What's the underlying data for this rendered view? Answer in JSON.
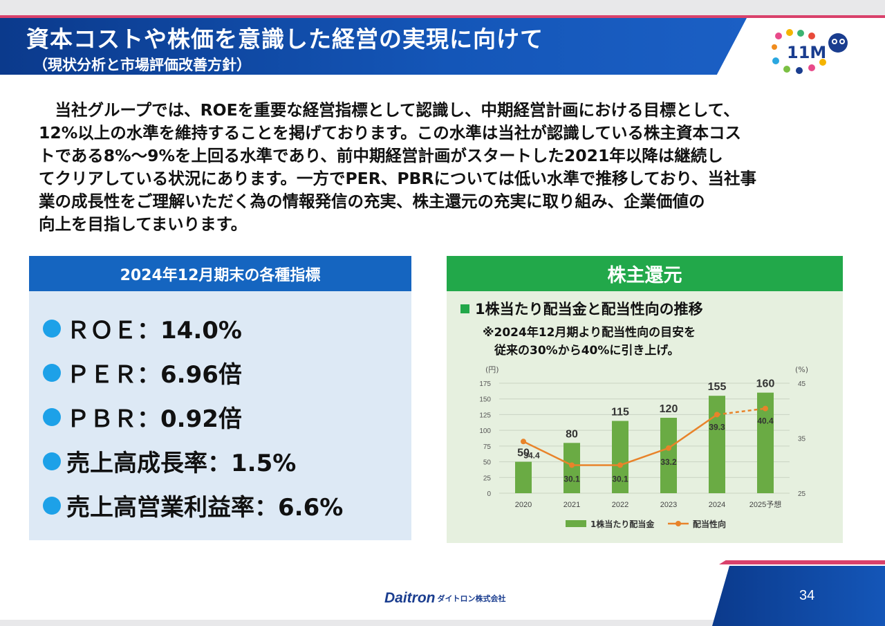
{
  "header": {
    "title": "資本コストや株価を意識した経営の実現に向けて",
    "subtitle": "（現状分析と市場評価改善方針）",
    "logo_text": "11M"
  },
  "intro_lines": [
    "　当社グループでは、ROEを重要な経営指標として認識し、中期経営計画における目標として、",
    "12%以上の水準を維持することを掲げております。この水準は当社が認識している株主資本コス",
    "トである8%～9%を上回る水準であり、前中期経営計画がスタートした2021年以降は継続し",
    "てクリアしている状況にあります。一方でPER、PBRについては低い水準で推移しており、当社事",
    "業の成長性をご理解いただく為の情報発信の充実、株主還元の充実に取り組み、企業価値の",
    "向上を目指してまいります。"
  ],
  "indicators": {
    "heading": "2024年12月期末の各種指標",
    "items": [
      "ＲＯＥ：14.0%",
      "ＰＥＲ：6.96倍",
      "ＰＢＲ：0.92倍",
      "売上高成長率：1.5%",
      "売上高営業利益率：6.6%"
    ]
  },
  "returns": {
    "heading": "株主還元",
    "section_title": "1株当たり配当金と配当性向の推移",
    "note": "※2024年12月期より配当性向の目安を\n　従来の30%から40%に引き上げ。"
  },
  "chart_data": {
    "type": "bar",
    "categories": [
      "2020",
      "2021",
      "2022",
      "2023",
      "2024",
      "2025予想"
    ],
    "series": [
      {
        "name": "1株当たり配当金",
        "type": "bar",
        "axis": "left",
        "values": [
          50,
          80,
          115,
          120,
          155,
          160
        ]
      },
      {
        "name": "配当性向",
        "type": "line",
        "axis": "right",
        "values": [
          34.4,
          30.1,
          30.1,
          33.2,
          39.3,
          40.4
        ],
        "dashed_last_segment": true
      }
    ],
    "left_axis": {
      "unit": "(円)",
      "ylim": [
        0,
        175
      ],
      "ticks": [
        "0",
        "25",
        "50",
        "75",
        "100",
        "125",
        "150",
        "175"
      ]
    },
    "right_axis": {
      "unit": "(%)",
      "ylim": [
        25,
        45
      ],
      "ticks": [
        "25",
        "35",
        "45"
      ]
    },
    "grid": true,
    "legend_position": "bottom",
    "colors": {
      "bar": "#6aab44",
      "line": "#e8832a"
    }
  },
  "footer": {
    "company_en": "Daitron",
    "company_jp": "ダイトロン株式会社",
    "page_number": "34"
  },
  "colors": {
    "banner": "#1456b8",
    "accent_pink": "#d9416b",
    "indicator_header": "#1565c0",
    "returns_header": "#22a84a"
  }
}
